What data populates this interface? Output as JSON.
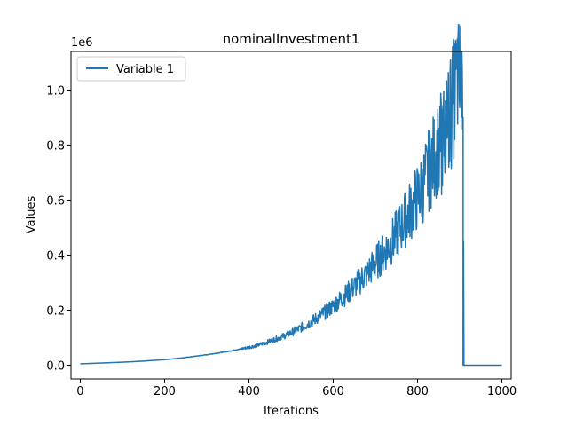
{
  "chart_data": {
    "type": "line",
    "title": "nominalInvestment1",
    "xlabel": "Iterations",
    "ylabel": "Values",
    "y_offset_label": "1e6",
    "xlim": [
      -22,
      1022
    ],
    "ylim": [
      -50000,
      1140000
    ],
    "x_ticks": [
      0,
      200,
      400,
      600,
      800,
      1000
    ],
    "x_tick_labels": [
      "0",
      "200",
      "400",
      "600",
      "800",
      "1000"
    ],
    "y_ticks": [
      0,
      200000,
      400000,
      600000,
      800000,
      1000000
    ],
    "y_tick_labels": [
      "0.0",
      "0.2",
      "0.4",
      "0.6",
      "0.8",
      "1.0"
    ],
    "legend_position": "upper-left",
    "grid": false,
    "color": "#1f77b4",
    "series": [
      {
        "name": "Variable 1",
        "x": [
          0,
          50,
          100,
          150,
          200,
          250,
          300,
          350,
          400,
          420,
          440,
          460,
          480,
          500,
          520,
          540,
          560,
          580,
          600,
          620,
          640,
          660,
          680,
          700,
          720,
          740,
          760,
          780,
          800,
          810,
          820,
          830,
          840,
          850,
          860,
          870,
          880,
          890,
          895,
          900,
          905,
          908,
          910,
          950,
          1000
        ],
        "y": [
          5000,
          8000,
          11000,
          15000,
          20000,
          28000,
          38000,
          50000,
          65000,
          72000,
          82000,
          93000,
          104000,
          118000,
          133000,
          150000,
          170000,
          192000,
          215000,
          243000,
          270000,
          302000,
          334000,
          370000,
          410000,
          450000,
          500000,
          555000,
          610000,
          640000,
          680000,
          720000,
          760000,
          800000,
          840000,
          880000,
          930000,
          1000000,
          1060000,
          1000000,
          1090000,
          900000,
          0,
          0,
          0
        ],
        "noise_amplitude_fraction": 0.08
      }
    ]
  }
}
